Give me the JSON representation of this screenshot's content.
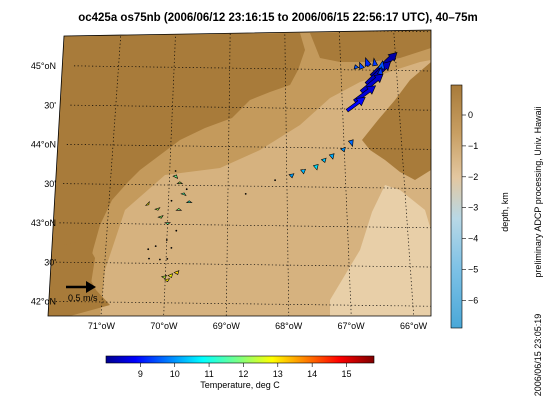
{
  "title": "oc425a os75nb (2006/06/12 23:16:15 to 2006/06/15 22:56:17 UTC), 40–75m",
  "map": {
    "lon_labels": [
      "71°oW",
      "70°oW",
      "69°oW",
      "68°oW",
      "67°oW",
      "66°oW"
    ],
    "lat_labels": [
      "45°oN",
      "30'",
      "44°oN",
      "30'",
      "43°oN",
      "30'",
      "42°oN"
    ],
    "lon_range": [
      -71.5,
      -65.5
    ],
    "lat_range": [
      41.9,
      45.7
    ],
    "scale_arrow_label": "0.5 m/s",
    "colors": {
      "land": "#a87b3a",
      "deep": "#c49a5c",
      "shelf": "#d6b27f",
      "shallow": "#e8cfa8",
      "frame": "#000000"
    }
  },
  "depth_colorbar": {
    "label": "depth, km",
    "ticks": [
      "0",
      "−1",
      "−2",
      "−3",
      "−4",
      "−5",
      "−6"
    ],
    "stops": [
      "#a87b3a",
      "#c89f63",
      "#e3c7a0",
      "#b8d8e6",
      "#7fc2e6",
      "#4aa8d8"
    ]
  },
  "temp_colorbar": {
    "label": "Temperature, deg C",
    "ticks": [
      "9",
      "10",
      "11",
      "12",
      "13",
      "14",
      "15"
    ],
    "range": [
      8,
      15.8
    ]
  },
  "side_text": "preliminary ADCP processing,  Univ. Hawaii",
  "timestamp": "2006/06/15 23:05:19",
  "vectors": [
    {
      "lon": -66.45,
      "lat": 44.92,
      "u": 0.42,
      "v": 0.4,
      "t": 8.3
    },
    {
      "lon": -66.55,
      "lat": 44.82,
      "u": 0.4,
      "v": 0.38,
      "t": 8.5
    },
    {
      "lon": -66.65,
      "lat": 44.72,
      "u": 0.36,
      "v": 0.3,
      "t": 8.6
    },
    {
      "lon": -66.78,
      "lat": 44.6,
      "u": 0.35,
      "v": 0.26,
      "t": 8.7
    },
    {
      "lon": -66.92,
      "lat": 44.48,
      "u": 0.3,
      "v": 0.22,
      "t": 9.0
    },
    {
      "lon": -66.5,
      "lat": 45.05,
      "u": -0.05,
      "v": 0.14,
      "t": 9.3
    },
    {
      "lon": -66.38,
      "lat": 45.06,
      "u": -0.02,
      "v": 0.12,
      "t": 9.4
    },
    {
      "lon": -66.62,
      "lat": 45.02,
      "u": -0.04,
      "v": 0.1,
      "t": 9.5
    },
    {
      "lon": -66.28,
      "lat": 45.0,
      "u": 0.03,
      "v": 0.16,
      "t": 9.6
    },
    {
      "lon": -66.3,
      "lat": 44.95,
      "u": 0.02,
      "v": 0.12,
      "t": 9.4
    },
    {
      "lon": -66.72,
      "lat": 45.02,
      "u": -0.02,
      "v": 0.06,
      "t": 9.6
    },
    {
      "lon": -66.88,
      "lat": 44.1,
      "u": 0.03,
      "v": -0.1,
      "t": 9.8
    },
    {
      "lon": -67.02,
      "lat": 44.0,
      "u": 0.02,
      "v": -0.06,
      "t": 10.1
    },
    {
      "lon": -67.22,
      "lat": 43.92,
      "u": 0.02,
      "v": -0.08,
      "t": 10.3
    },
    {
      "lon": -67.36,
      "lat": 43.86,
      "u": 0.02,
      "v": -0.06,
      "t": 10.5
    },
    {
      "lon": -67.5,
      "lat": 43.78,
      "u": 0.02,
      "v": -0.08,
      "t": 10.7
    },
    {
      "lon": -67.72,
      "lat": 43.72,
      "u": 0.01,
      "v": -0.07,
      "t": 10.4
    },
    {
      "lon": -67.92,
      "lat": 43.66,
      "u": 0.01,
      "v": -0.06,
      "t": 10.2
    },
    {
      "lon": -68.2,
      "lat": 43.58,
      "u": 0.0,
      "v": 0.01,
      "t": 11.0
    },
    {
      "lon": -68.7,
      "lat": 43.4,
      "u": 0.0,
      "v": 0.01,
      "t": 11.2
    },
    {
      "lon": -69.9,
      "lat": 43.68,
      "u": 0.0,
      "v": 0.0,
      "t": 11.5
    },
    {
      "lon": -69.9,
      "lat": 43.6,
      "u": 0.02,
      "v": 0.04,
      "t": 11.8
    },
    {
      "lon": -69.82,
      "lat": 43.52,
      "u": 0.0,
      "v": 0.03,
      "t": 12.2
    },
    {
      "lon": -69.75,
      "lat": 43.38,
      "u": 0.01,
      "v": 0.03,
      "t": 11.6
    },
    {
      "lon": -69.65,
      "lat": 43.28,
      "u": 0.0,
      "v": 0.03,
      "t": 11.3
    },
    {
      "lon": -69.82,
      "lat": 43.18,
      "u": 0.0,
      "v": 0.03,
      "t": 11.9
    },
    {
      "lon": -69.7,
      "lat": 43.45,
      "u": 0.0,
      "v": 0.01,
      "t": 12.4
    },
    {
      "lon": -69.95,
      "lat": 43.3,
      "u": 0.0,
      "v": 0.01,
      "t": 12.6
    },
    {
      "lon": -70.35,
      "lat": 43.26,
      "u": 0.02,
      "v": -0.02,
      "t": 12.9
    },
    {
      "lon": -70.18,
      "lat": 43.2,
      "u": 0.01,
      "v": -0.03,
      "t": 12.3
    },
    {
      "lon": -70.12,
      "lat": 43.1,
      "u": 0.01,
      "v": -0.03,
      "t": 12.1
    },
    {
      "lon": -70.0,
      "lat": 43.02,
      "u": 0.0,
      "v": -0.03,
      "t": 11.7
    },
    {
      "lon": -69.85,
      "lat": 42.92,
      "u": 0.0,
      "v": -0.02,
      "t": 11.4
    },
    {
      "lon": -70.0,
      "lat": 42.8,
      "u": 0.0,
      "v": -0.01,
      "t": 12.7
    },
    {
      "lon": -69.92,
      "lat": 42.7,
      "u": 0.0,
      "v": -0.02,
      "t": 12.2
    },
    {
      "lon": -70.18,
      "lat": 42.72,
      "u": 0.0,
      "v": -0.02,
      "t": 12.5
    },
    {
      "lon": -69.98,
      "lat": 42.56,
      "u": 0.0,
      "v": -0.01,
      "t": 11.3
    },
    {
      "lon": -70.1,
      "lat": 42.55,
      "u": 0.0,
      "v": 0.0,
      "t": 12.8
    },
    {
      "lon": -70.3,
      "lat": 42.68,
      "u": 0.0,
      "v": -0.01,
      "t": 12.9
    },
    {
      "lon": -70.28,
      "lat": 42.56,
      "u": 0.0,
      "v": 0.0,
      "t": 13.1
    },
    {
      "lon": -69.92,
      "lat": 42.36,
      "u": 0.02,
      "v": -0.05,
      "t": 12.9
    },
    {
      "lon": -69.82,
      "lat": 42.4,
      "u": 0.02,
      "v": -0.05,
      "t": 13.2
    },
    {
      "lon": -69.97,
      "lat": 42.3,
      "u": 0.01,
      "v": -0.04,
      "t": 13.0
    },
    {
      "lon": -70.02,
      "lat": 42.34,
      "u": 0.01,
      "v": -0.04,
      "t": 12.4
    }
  ]
}
